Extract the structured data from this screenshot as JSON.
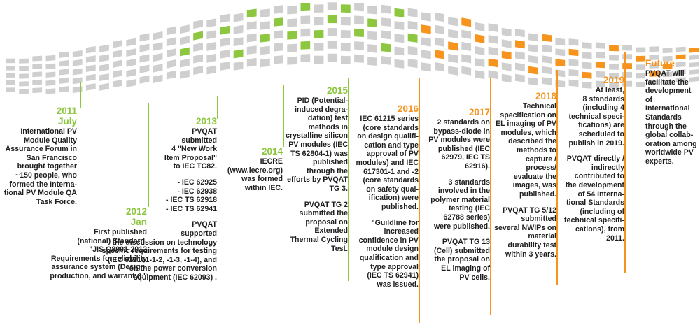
{
  "colors": {
    "green": "#8dc63f",
    "orange": "#f7941d",
    "gray": "#cfcfcf",
    "text": "#1e1e1e"
  },
  "entries": {
    "y2011": {
      "year": "2011",
      "sub": "July",
      "text": "International PV\nModule Quality\nAssurance Forum in\nSan Francisco\nbrought together\n~150 people, who\nformed the Interna-\ntional PV Module QA\nTask Force."
    },
    "y2012": {
      "year": "2012",
      "sub": "Jan",
      "text": "First published\n(national) Standard.\n\"JIS Q8901-2012\nRequirements for reliability\nassurance system (Design,\nproduction, and warranty).\""
    },
    "y2013": {
      "year": "2013",
      "text": "PVQAT\nsubmitted\n4 \"New Work\nItem Proposal\"\nto IEC TC82.",
      "list": "- IEC 62925\n- IEC 62938\n- IEC TS 62918\n- IEC TS 62941",
      "text2": "PVQAT\nsupported\nthe discussion on technology\nspecific requirements for testing\n(IEC 612151-1-2, -1-3, -1-4), and\non the power conversion\nequipment (IEC 62093) ."
    },
    "y2014": {
      "year": "2014",
      "text": "IECRE\n(www.iecre.org)\nwas formed\nwithin IEC."
    },
    "y2015": {
      "year": "2015",
      "text": "PID (Potential-\ninduced degra-\ndation) test\nmethods in\ncrystalline silicon\nPV modules (IEC\nTS 62804-1) was\npublished\nthrough the\nefforts by PVQAT\nTG 3.",
      "text2": "PVQAT TG 2\nsubmitted the\nproposal on\nExtended\nThermal Cycling\nTest."
    },
    "y2016": {
      "year": "2016",
      "text": "IEC 61215 series\n(core standards\non design qualifi-\ncation and type\napproval of PV\nmodules) and IEC\n617301-1 and -2\n(core standards\non safety qual-\nification)  were\npublished.",
      "text2": "\"Guildline for\nincreased\nconfidence in PV\nmodule design\nqualification and\ntype approval\n(IEC TS 62941)\nwas issued."
    },
    "y2017": {
      "year": "2017",
      "text": "2 standards on\nbypass-diode in\nPV modules were\npublished (IEC\n62979, IEC TS\n62916).",
      "text2": "3 standards\ninvolved in the\npolymer material\ntesting (IEC\n62788 series)\nwere published.",
      "text3": "PVQAT TG 13\n(Cell) submitted\nthe proposal on\nEL imaging of\nPV cells."
    },
    "y2018": {
      "year": "2018",
      "text": "Technical\nspecification on\nEL imaging of PV\nmodules, which\ndescribed the\nmethods to\ncapture /\nprocess/\nevaluate the\nimages, was\npublished.",
      "text2": "PVQAT TG 5/12\nsubmitted\nseveral NWIPs on\nmaterial\ndurability test\nwithin 3 years."
    },
    "y2019": {
      "year": "2019",
      "text": "At least,\n8 standards\n(including 4\ntechnical speci-\nfications) are\nscheduled to\npublish in 2019.",
      "text2": "PVQAT directly /\nindirectly\ncontributed to\nthe development\nof 54 Interna-\ntional Standards\n(including of\ntechnical specifi-\ncations), from\n2011."
    },
    "future": {
      "year": "Future",
      "text": "PVQAT will\nfacilitate the\ndevelopment of\nInternational\nStandards\nthrough the\nglobal collab-\noration among\nworldwide PV\nexperts."
    }
  }
}
